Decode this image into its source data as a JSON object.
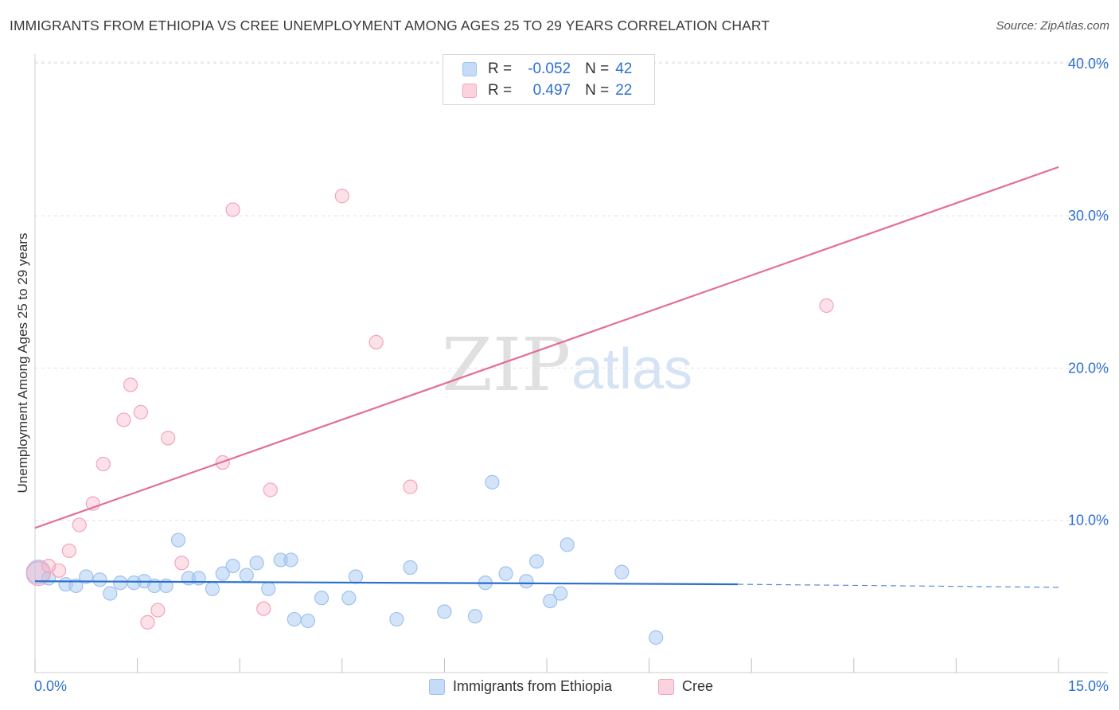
{
  "title": "IMMIGRANTS FROM ETHIOPIA VS CREE UNEMPLOYMENT AMONG AGES 25 TO 29 YEARS CORRELATION CHART",
  "source": "Source: ZipAtlas.com",
  "watermark": {
    "zip": "ZIP",
    "atlas": "atlas"
  },
  "legend": {
    "r_label": "R =",
    "n_label": "N =",
    "rows": [
      {
        "name": "Immigrants from Ethiopia",
        "r": "-0.052",
        "n": "42",
        "color": "#9ec2ef",
        "fill": "#c5dbf7"
      },
      {
        "name": "Cree",
        "r": "0.497",
        "n": "22",
        "color": "#f2a4bc",
        "fill": "#fbd3df"
      }
    ]
  },
  "chart_data": {
    "type": "scatter",
    "title": "IMMIGRANTS FROM ETHIOPIA VS CREE UNEMPLOYMENT AMONG AGES 25 TO 29 YEARS CORRELATION CHART",
    "xlabel": "",
    "ylabel": "Unemployment Among Ages 25 to 29 years",
    "xlim": [
      0,
      15
    ],
    "ylim": [
      0,
      41
    ],
    "x_tick_labels": [
      "0.0%",
      "15.0%"
    ],
    "y_ticks": [
      10,
      20,
      30,
      40
    ],
    "y_tick_labels": [
      "10.0%",
      "20.0%",
      "30.0%",
      "40.0%"
    ],
    "series": [
      {
        "name": "Immigrants from Ethiopia",
        "color": "#9ec2ef",
        "trend_color": "#2a6fcc",
        "trend": {
          "x0": 0,
          "y0": 6.0,
          "x1": 10.3,
          "y1": 5.8,
          "dash_to_x": 15,
          "dash_to_y": 5.6
        },
        "points": [
          {
            "x": 0.05,
            "y": 6.6,
            "big": true
          },
          {
            "x": 0.2,
            "y": 6.2
          },
          {
            "x": 0.45,
            "y": 5.8
          },
          {
            "x": 0.6,
            "y": 5.7
          },
          {
            "x": 0.75,
            "y": 6.3
          },
          {
            "x": 0.95,
            "y": 6.1
          },
          {
            "x": 1.1,
            "y": 5.2
          },
          {
            "x": 1.25,
            "y": 5.9
          },
          {
            "x": 1.45,
            "y": 5.9
          },
          {
            "x": 1.6,
            "y": 6.0
          },
          {
            "x": 1.75,
            "y": 5.7
          },
          {
            "x": 1.92,
            "y": 5.7
          },
          {
            "x": 2.1,
            "y": 8.7
          },
          {
            "x": 2.25,
            "y": 6.2
          },
          {
            "x": 2.4,
            "y": 6.2
          },
          {
            "x": 2.6,
            "y": 5.5
          },
          {
            "x": 2.75,
            "y": 6.5
          },
          {
            "x": 2.9,
            "y": 7.0
          },
          {
            "x": 3.1,
            "y": 6.4
          },
          {
            "x": 3.25,
            "y": 7.2
          },
          {
            "x": 3.42,
            "y": 5.5
          },
          {
            "x": 3.6,
            "y": 7.4
          },
          {
            "x": 3.75,
            "y": 7.4
          },
          {
            "x": 3.8,
            "y": 3.5
          },
          {
            "x": 4.0,
            "y": 3.4
          },
          {
            "x": 4.2,
            "y": 4.9
          },
          {
            "x": 4.6,
            "y": 4.9
          },
          {
            "x": 4.7,
            "y": 6.3
          },
          {
            "x": 5.3,
            "y": 3.5
          },
          {
            "x": 5.5,
            "y": 6.9
          },
          {
            "x": 6.0,
            "y": 4.0
          },
          {
            "x": 6.45,
            "y": 3.7
          },
          {
            "x": 6.6,
            "y": 5.9
          },
          {
            "x": 6.7,
            "y": 12.5
          },
          {
            "x": 6.9,
            "y": 6.5
          },
          {
            "x": 7.2,
            "y": 6.0
          },
          {
            "x": 7.35,
            "y": 7.3
          },
          {
            "x": 7.55,
            "y": 4.7
          },
          {
            "x": 7.7,
            "y": 5.2
          },
          {
            "x": 7.8,
            "y": 8.4
          },
          {
            "x": 8.6,
            "y": 6.6
          },
          {
            "x": 9.1,
            "y": 2.3
          }
        ]
      },
      {
        "name": "Cree",
        "color": "#f2a4bc",
        "trend_color": "#e46d95",
        "trend": {
          "x0": 0,
          "y0": 9.5,
          "x1": 15,
          "y1": 33.2
        },
        "points": [
          {
            "x": 0.05,
            "y": 6.5,
            "big": true
          },
          {
            "x": 0.2,
            "y": 7.0
          },
          {
            "x": 0.35,
            "y": 6.7
          },
          {
            "x": 0.5,
            "y": 8.0
          },
          {
            "x": 0.65,
            "y": 9.7
          },
          {
            "x": 0.85,
            "y": 11.1
          },
          {
            "x": 1.0,
            "y": 13.7
          },
          {
            "x": 1.3,
            "y": 16.6
          },
          {
            "x": 1.4,
            "y": 18.9
          },
          {
            "x": 1.55,
            "y": 17.1
          },
          {
            "x": 1.65,
            "y": 3.3
          },
          {
            "x": 1.8,
            "y": 4.1
          },
          {
            "x": 1.95,
            "y": 15.4
          },
          {
            "x": 2.15,
            "y": 7.2
          },
          {
            "x": 2.75,
            "y": 13.8
          },
          {
            "x": 2.9,
            "y": 30.4
          },
          {
            "x": 3.35,
            "y": 4.2
          },
          {
            "x": 3.45,
            "y": 12.0
          },
          {
            "x": 4.5,
            "y": 31.3
          },
          {
            "x": 5.0,
            "y": 21.7
          },
          {
            "x": 5.5,
            "y": 12.2
          },
          {
            "x": 11.6,
            "y": 24.1
          }
        ]
      }
    ]
  }
}
